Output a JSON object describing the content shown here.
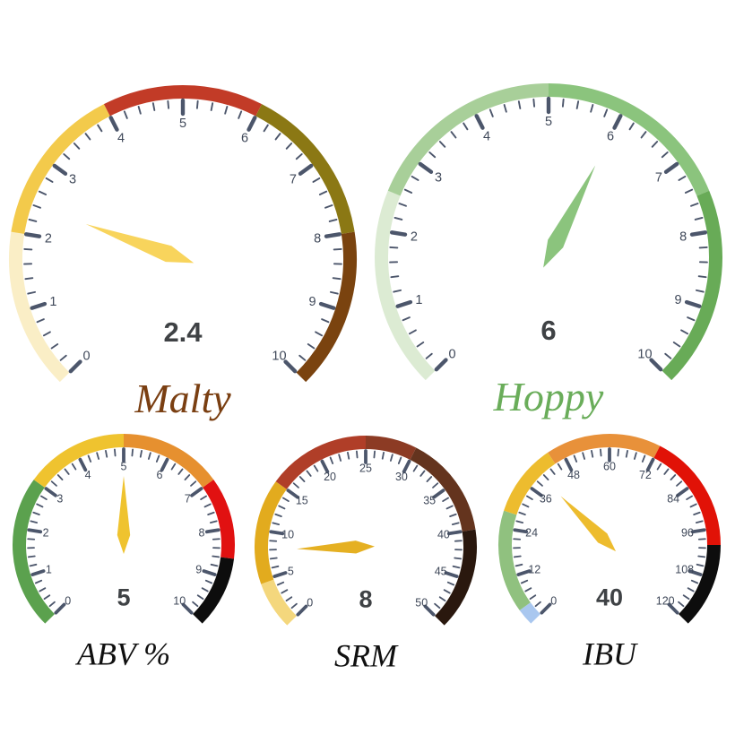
{
  "page": {
    "background": "#ffffff"
  },
  "styles": {
    "tick_color": "#4c566b",
    "tick_label_color": "#3f4859",
    "value_color": "#3f4245"
  },
  "chart_data": [
    {
      "type": "gauge",
      "id": "malty",
      "title": "Malty",
      "title_color": "#7a3f12",
      "value": 2.4,
      "value_label": "2.4",
      "min": 0,
      "max": 10,
      "major_step": 1,
      "minor_step": 0.2,
      "tick_labels": [
        "0",
        "1",
        "2",
        "3",
        "4",
        "5",
        "6",
        "7",
        "8",
        "9",
        "10"
      ],
      "needle_color": "#f8d45c",
      "segments": [
        {
          "from": 0,
          "to": 2,
          "color": "#faeec6"
        },
        {
          "from": 2,
          "to": 4,
          "color": "#f3ca4b"
        },
        {
          "from": 4,
          "to": 6,
          "color": "#c23b27"
        },
        {
          "from": 6,
          "to": 8,
          "color": "#8b7814"
        },
        {
          "from": 8,
          "to": 10,
          "color": "#7a430f"
        }
      ]
    },
    {
      "type": "gauge",
      "id": "hoppy",
      "title": "Hoppy",
      "title_color": "#6aad5a",
      "value": 6,
      "value_label": "6",
      "min": 0,
      "max": 10,
      "major_step": 1,
      "minor_step": 0.2,
      "tick_labels": [
        "0",
        "1",
        "2",
        "3",
        "4",
        "5",
        "6",
        "7",
        "8",
        "9",
        "10"
      ],
      "needle_color": "#8bc47d",
      "segments": [
        {
          "from": 0,
          "to": 2.5,
          "color": "#dcebd3"
        },
        {
          "from": 2.5,
          "to": 5,
          "color": "#a8cf99"
        },
        {
          "from": 5,
          "to": 7.5,
          "color": "#8bc47d"
        },
        {
          "from": 7.5,
          "to": 10,
          "color": "#68ab57"
        }
      ]
    },
    {
      "type": "gauge",
      "id": "abv",
      "title": "ABV %",
      "title_color": "#101010",
      "value": 5,
      "value_label": "5",
      "min": 0,
      "max": 10,
      "major_step": 1,
      "minor_step": 0.2,
      "tick_labels": [
        "0",
        "1",
        "2",
        "3",
        "4",
        "5",
        "6",
        "7",
        "8",
        "9",
        "10"
      ],
      "needle_color": "#efc32f",
      "segments": [
        {
          "from": 0,
          "to": 3,
          "color": "#5ba14e"
        },
        {
          "from": 3,
          "to": 5,
          "color": "#efc32f"
        },
        {
          "from": 5,
          "to": 7,
          "color": "#e6902f"
        },
        {
          "from": 7,
          "to": 8.6,
          "color": "#e11111"
        },
        {
          "from": 8.6,
          "to": 10,
          "color": "#0d0d0d"
        }
      ]
    },
    {
      "type": "gauge",
      "id": "srm",
      "title": "SRM",
      "title_color": "#101010",
      "value": 8,
      "value_label": "8",
      "min": 0,
      "max": 50,
      "major_step": 5,
      "minor_step": 1,
      "tick_labels": [
        "0",
        "5",
        "10",
        "15",
        "20",
        "25",
        "30",
        "35",
        "40",
        "45",
        "50"
      ],
      "needle_color": "#e5b022",
      "segments": [
        {
          "from": 0,
          "to": 4.7,
          "color": "#f4d77d"
        },
        {
          "from": 4.7,
          "to": 15,
          "color": "#e2ab1e"
        },
        {
          "from": 15,
          "to": 25,
          "color": "#b03e28"
        },
        {
          "from": 25,
          "to": 30,
          "color": "#8c3b24"
        },
        {
          "from": 30,
          "to": 40,
          "color": "#64341e"
        },
        {
          "from": 40,
          "to": 50,
          "color": "#2a180e"
        }
      ]
    },
    {
      "type": "gauge",
      "id": "ibu",
      "title": "IBU",
      "title_color": "#101010",
      "value": 40,
      "value_label": "40",
      "min": 0,
      "max": 120,
      "major_step": 12,
      "minor_step": 2.4,
      "tick_labels": [
        "0",
        "12",
        "24",
        "36",
        "48",
        "60",
        "72",
        "84",
        "96",
        "108",
        "120"
      ],
      "needle_color": "#edbc2e",
      "segments": [
        {
          "from": 0,
          "to": 4,
          "color": "#a9c7ef"
        },
        {
          "from": 4,
          "to": 28,
          "color": "#90c17f"
        },
        {
          "from": 28,
          "to": 45,
          "color": "#edbc2e"
        },
        {
          "from": 45,
          "to": 72,
          "color": "#e8913a"
        },
        {
          "from": 72,
          "to": 100,
          "color": "#e11207"
        },
        {
          "from": 100,
          "to": 120,
          "color": "#0d0d0d"
        }
      ]
    }
  ]
}
